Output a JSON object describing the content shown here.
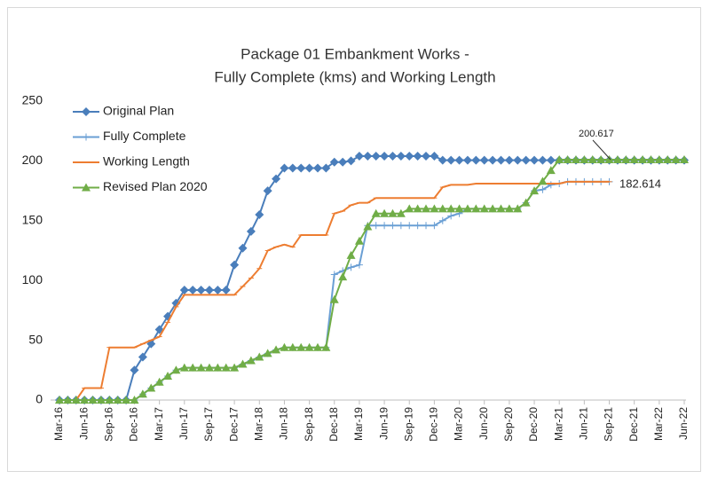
{
  "chart_data": {
    "type": "line",
    "title": [
      "Package 01 Embankment Works -",
      "Fully Complete (kms) and Working Length"
    ],
    "categories": [
      "Mar-16",
      null,
      null,
      "Jun-16",
      null,
      null,
      "Sep-16",
      null,
      null,
      "Dec-16",
      null,
      null,
      "Mar-17",
      null,
      null,
      "Jun-17",
      null,
      null,
      "Sep-17",
      null,
      null,
      "Dec-17",
      null,
      null,
      "Mar-18",
      null,
      null,
      "Jun-18",
      null,
      null,
      "Sep-18",
      null,
      null,
      "Dec-18",
      null,
      null,
      "Mar-19",
      null,
      null,
      "Jun-19",
      null,
      null,
      "Sep-19",
      null,
      null,
      "Dec-19",
      null,
      null,
      "Mar-20",
      null,
      null,
      "Jun-20",
      null,
      null,
      "Sep-20",
      null,
      null,
      "Dec-20",
      null,
      null,
      "Mar-21",
      null,
      null,
      "Jun-21",
      null,
      null,
      "Sep-21",
      null,
      null,
      "Dec-21",
      null,
      null,
      "Mar-22",
      null,
      null,
      "Jun-22"
    ],
    "series": [
      {
        "name": "Original Plan",
        "color": "#4a7ebb",
        "marker": "diamond",
        "values": [
          0,
          0,
          0,
          0,
          0,
          0,
          0,
          0,
          0,
          25,
          36,
          47,
          59,
          70,
          81,
          92,
          92,
          92,
          92,
          92,
          92,
          113,
          127,
          141,
          155,
          175,
          185,
          194,
          194,
          194,
          194,
          194,
          194,
          199,
          199,
          200,
          204,
          204,
          204,
          204,
          204,
          204,
          204,
          204,
          204,
          204,
          200.617,
          200.617,
          200.617,
          200.617,
          200.617,
          200.617,
          200.617,
          200.617,
          200.617,
          200.617,
          200.617,
          200.617,
          200.617,
          200.617,
          200.617,
          200.617,
          200.617,
          200.617,
          200.617,
          200.617,
          200.617,
          200.617,
          200.617,
          200.617,
          200.617,
          200.617,
          200.617,
          200.617,
          200.617,
          200.617
        ]
      },
      {
        "name": "Fully Complete",
        "color": "#6a9fd4",
        "marker": "plus",
        "values": [
          0,
          0,
          0,
          0,
          0,
          0,
          0,
          0,
          0,
          0,
          5,
          10,
          15,
          20,
          25,
          27,
          27,
          27,
          27,
          27,
          27,
          27,
          30,
          33,
          36,
          39,
          42,
          44,
          44,
          44,
          44,
          44,
          44,
          105,
          108,
          111,
          113,
          146,
          146,
          146,
          146,
          146,
          146,
          146,
          146,
          146,
          150,
          154,
          156,
          160,
          160,
          160,
          160,
          160,
          160,
          160,
          165,
          175,
          176,
          180,
          181,
          182.614,
          182.614,
          182.614,
          182.614,
          182.614,
          182.614,
          null,
          null,
          null,
          null,
          null,
          null,
          null,
          null,
          null
        ]
      },
      {
        "name": "Working Length",
        "color": "#ed7d31",
        "marker": "dash",
        "values": [
          0,
          0,
          0,
          10,
          10,
          10,
          44,
          44,
          44,
          44,
          47,
          50,
          53,
          65,
          78,
          88,
          88,
          88,
          88,
          88,
          88,
          88,
          95,
          102,
          110,
          125,
          128,
          130,
          128,
          138,
          138,
          138,
          138,
          156,
          158,
          163,
          165,
          165,
          169,
          169,
          169,
          169,
          169,
          169,
          169,
          169,
          178,
          180,
          180,
          180,
          181,
          181,
          181,
          181,
          181,
          181,
          181,
          181,
          181,
          181,
          181,
          182.614,
          182.614,
          182.614,
          182.614,
          182.614,
          182.614,
          null,
          null,
          null,
          null,
          null,
          null,
          null,
          null,
          null
        ]
      },
      {
        "name": "Revised Plan 2020",
        "color": "#70ad47",
        "marker": "triangle",
        "values": [
          0,
          0,
          0,
          0,
          0,
          0,
          0,
          0,
          0,
          0,
          5,
          10,
          15,
          20,
          25,
          27,
          27,
          27,
          27,
          27,
          27,
          27,
          30,
          33,
          36,
          39,
          42,
          44,
          44,
          44,
          44,
          44,
          44,
          84,
          103,
          121,
          133,
          145,
          156,
          156,
          156,
          156,
          160,
          160,
          160,
          160,
          160,
          160,
          160,
          160,
          160,
          160,
          160,
          160,
          160,
          160,
          165,
          175,
          183,
          192,
          201,
          201,
          201,
          201,
          201,
          201,
          201,
          201,
          201,
          201,
          201,
          201,
          201,
          201,
          201,
          201
        ]
      }
    ],
    "ylim": [
      0,
      250
    ],
    "yticks": [
      0,
      50,
      100,
      150,
      200,
      250
    ],
    "grid": false,
    "legend": "upper left",
    "annotations": [
      "200.617",
      "182.614"
    ]
  }
}
